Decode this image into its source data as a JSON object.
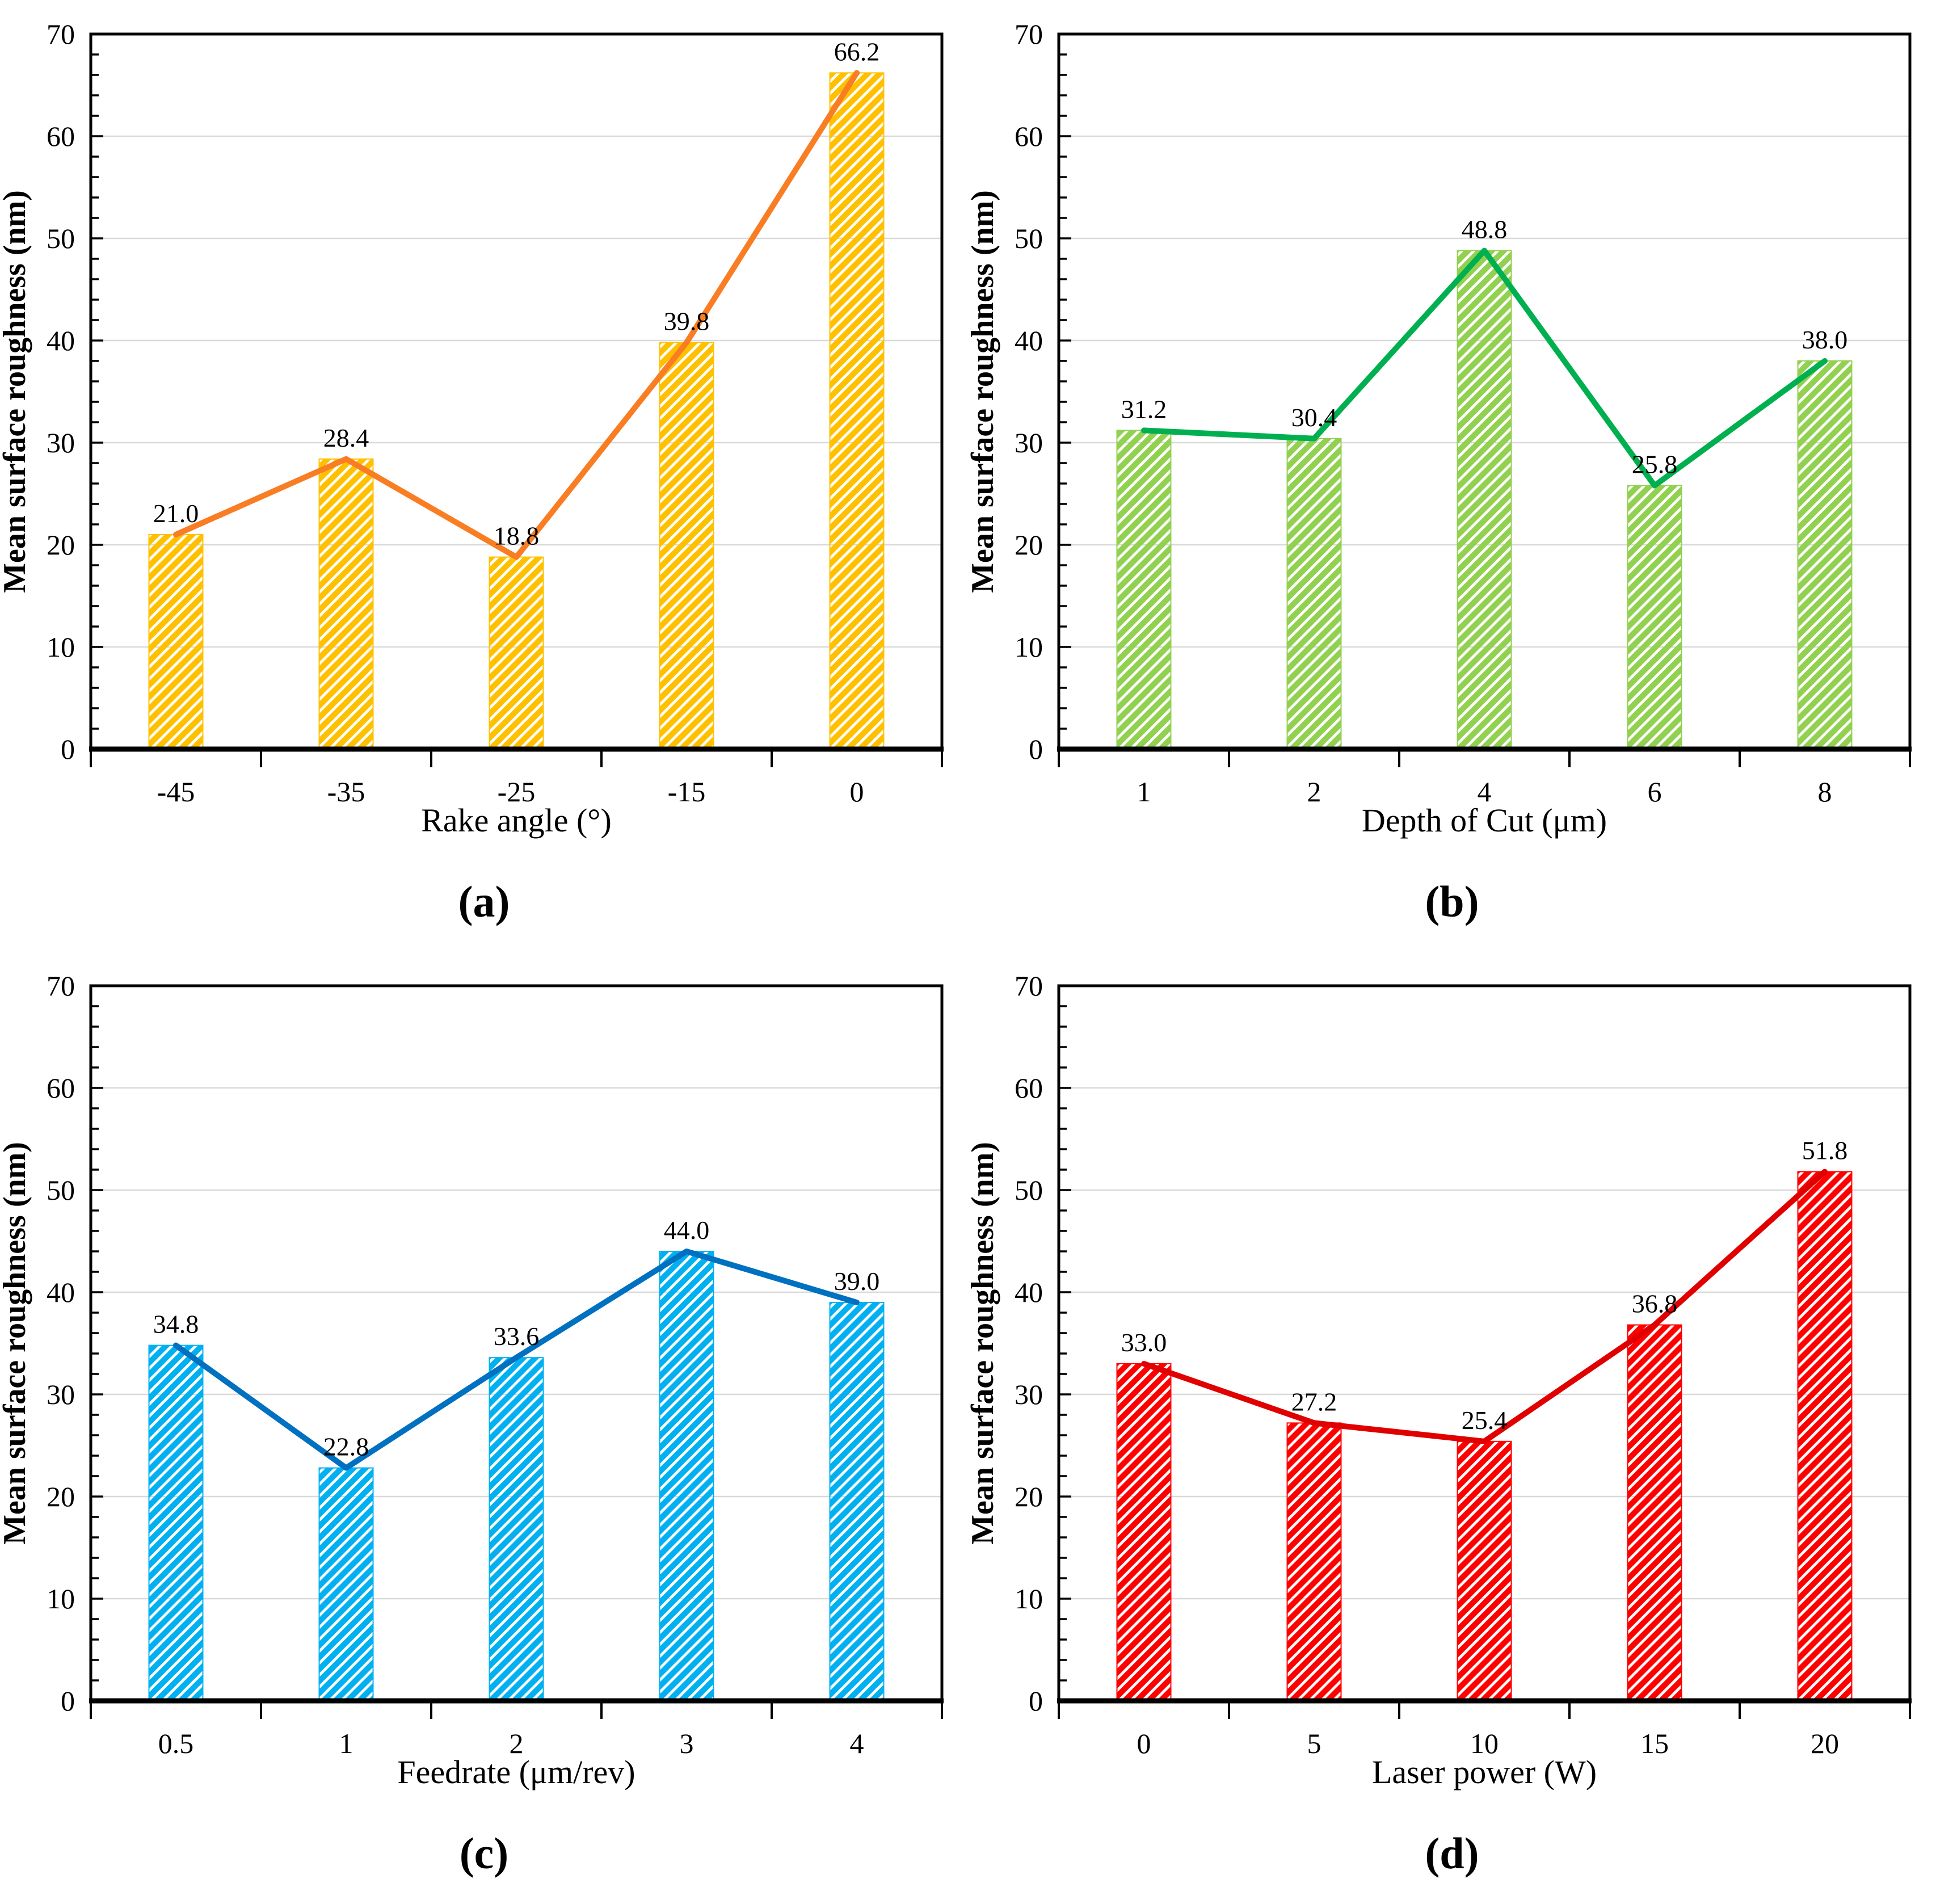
{
  "figure": {
    "background": "#FFFFFF",
    "grid_color": "#D9D9D9",
    "axis_color": "#000000"
  },
  "chart_data": [
    {
      "type": "bar",
      "line_overlay": true,
      "panel": "a",
      "caption": "(a)",
      "xlabel": "Rake angle (°)",
      "ylabel": "Mean surface roughness (nm)",
      "categories": [
        "-45",
        "-35",
        "-25",
        "-15",
        "0"
      ],
      "values": [
        21.0,
        28.4,
        18.8,
        39.8,
        66.2
      ],
      "data_labels": [
        "21.0",
        "28.4",
        "18.8",
        "39.8",
        "66.2"
      ],
      "ylim": [
        0,
        70
      ],
      "ytick_step": 10,
      "yminor_step": 2,
      "grid": true,
      "legend": "none",
      "bar_color": "#FFC000",
      "line_color": "#F97D23"
    },
    {
      "type": "bar",
      "line_overlay": true,
      "panel": "b",
      "caption": "(b)",
      "xlabel": "Depth of Cut (μm)",
      "ylabel": "Mean surface roughness (nm)",
      "categories": [
        "1",
        "2",
        "4",
        "6",
        "8"
      ],
      "values": [
        31.2,
        30.4,
        48.8,
        25.8,
        38.0
      ],
      "data_labels": [
        "31.2",
        "30.4",
        "48.8",
        "25.8",
        "38.0"
      ],
      "ylim": [
        0,
        70
      ],
      "ytick_step": 10,
      "yminor_step": 2,
      "grid": true,
      "legend": "none",
      "bar_color": "#92D050",
      "line_color": "#00B050"
    },
    {
      "type": "bar",
      "line_overlay": true,
      "panel": "c",
      "caption": "(c)",
      "xlabel": "Feedrate (μm/rev)",
      "ylabel": "Mean surface roughness (nm)",
      "categories": [
        "0.5",
        "1",
        "2",
        "3",
        "4"
      ],
      "values": [
        34.8,
        22.8,
        33.6,
        44.0,
        39.0
      ],
      "data_labels": [
        "34.8",
        "22.8",
        "33.6",
        "44.0",
        "39.0"
      ],
      "ylim": [
        0,
        70
      ],
      "ytick_step": 10,
      "yminor_step": 2,
      "grid": true,
      "legend": "none",
      "bar_color": "#00B0F0",
      "line_color": "#0070C0"
    },
    {
      "type": "bar",
      "line_overlay": true,
      "panel": "d",
      "caption": "(d)",
      "xlabel": "Laser power (W)",
      "ylabel": "Mean surface roughness (nm)",
      "categories": [
        "0",
        "5",
        "10",
        "15",
        "20"
      ],
      "values": [
        33.0,
        27.2,
        25.4,
        36.8,
        51.8
      ],
      "data_labels": [
        "33.0",
        "27.2",
        "25.4",
        "36.8",
        "51.8"
      ],
      "ylim": [
        0,
        70
      ],
      "ytick_step": 10,
      "yminor_step": 2,
      "grid": true,
      "legend": "none",
      "bar_color": "#FF0000",
      "line_color": "#E00000"
    }
  ]
}
